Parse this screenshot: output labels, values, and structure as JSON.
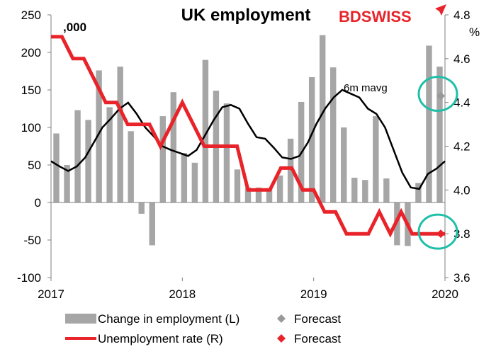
{
  "brand": {
    "name": "BDSWISS",
    "prefix": "BD",
    "suffix": "SWISS",
    "color": "#e8242a"
  },
  "chart_data": {
    "type": "bar",
    "title": "UK employment",
    "left_unit": ",000",
    "right_unit": "%",
    "x_ticks": [
      "2017",
      "2018",
      "2019",
      "2020"
    ],
    "ylim_left": [
      -100,
      250
    ],
    "yticks_left": [
      "250",
      "200",
      "150",
      "100",
      "50",
      "0",
      "-50",
      "-100"
    ],
    "ylim_right": [
      3.6,
      4.8
    ],
    "yticks_right": [
      "4.8",
      "4.6",
      "4.4",
      "4.2",
      "4.0",
      "3.8",
      "3.6"
    ],
    "annotation": "6m mavg",
    "series": [
      {
        "name": "Change in employment (L)",
        "type": "bar",
        "axis": "left",
        "color": "#a6a6a6",
        "values": [
          92,
          50,
          123,
          110,
          176,
          127,
          181,
          95,
          -15,
          -57,
          115,
          147,
          66,
          53,
          190,
          149,
          132,
          44,
          20,
          20,
          19,
          36,
          85,
          134,
          167,
          223,
          180,
          100,
          33,
          30,
          115,
          32,
          -57,
          -58,
          26,
          209,
          181
        ]
      },
      {
        "name": "6m mavg",
        "type": "line",
        "axis": "left",
        "color": "#000000",
        "values": [
          55,
          48,
          42,
          48,
          60,
          80,
          100,
          112,
          125,
          133,
          118,
          100,
          88,
          75,
          70,
          66,
          62,
          70,
          90,
          110,
          127,
          130,
          125,
          105,
          87,
          85,
          73,
          60,
          58,
          62,
          80,
          105,
          125,
          140,
          150,
          145,
          140,
          125,
          118,
          100,
          70,
          40,
          20,
          18,
          38,
          45,
          55
        ]
      },
      {
        "name": "Unemployment rate (R)",
        "type": "line",
        "axis": "right",
        "color": "#e8242a",
        "values": [
          4.7,
          4.7,
          4.6,
          4.6,
          4.5,
          4.4,
          4.4,
          4.3,
          4.3,
          4.3,
          4.2,
          4.3,
          4.4,
          4.3,
          4.2,
          4.2,
          4.2,
          4.2,
          4.0,
          4.0,
          4.0,
          4.1,
          4.1,
          4.0,
          4.0,
          3.9,
          3.9,
          3.8,
          3.8,
          3.8,
          3.9,
          3.8,
          3.9,
          3.8,
          3.8,
          3.8,
          3.8
        ]
      }
    ],
    "forecasts": [
      {
        "name": "Forecast",
        "axis": "left",
        "value": 142,
        "color": "#999999"
      },
      {
        "name": "Forecast",
        "axis": "right",
        "value": 3.8,
        "color": "#e8242a"
      }
    ],
    "highlight_color": "#1fbfa8",
    "legend": [
      {
        "label": "Change in employment (L)",
        "kind": "bar",
        "color": "#a6a6a6"
      },
      {
        "label": "Forecast",
        "kind": "diamond",
        "color": "#999999"
      },
      {
        "label": "Unemployment rate (R)",
        "kind": "line",
        "color": "#e8242a"
      },
      {
        "label": "Forecast",
        "kind": "diamond",
        "color": "#e8242a"
      }
    ],
    "grid": false,
    "legend_position": "bottom"
  }
}
